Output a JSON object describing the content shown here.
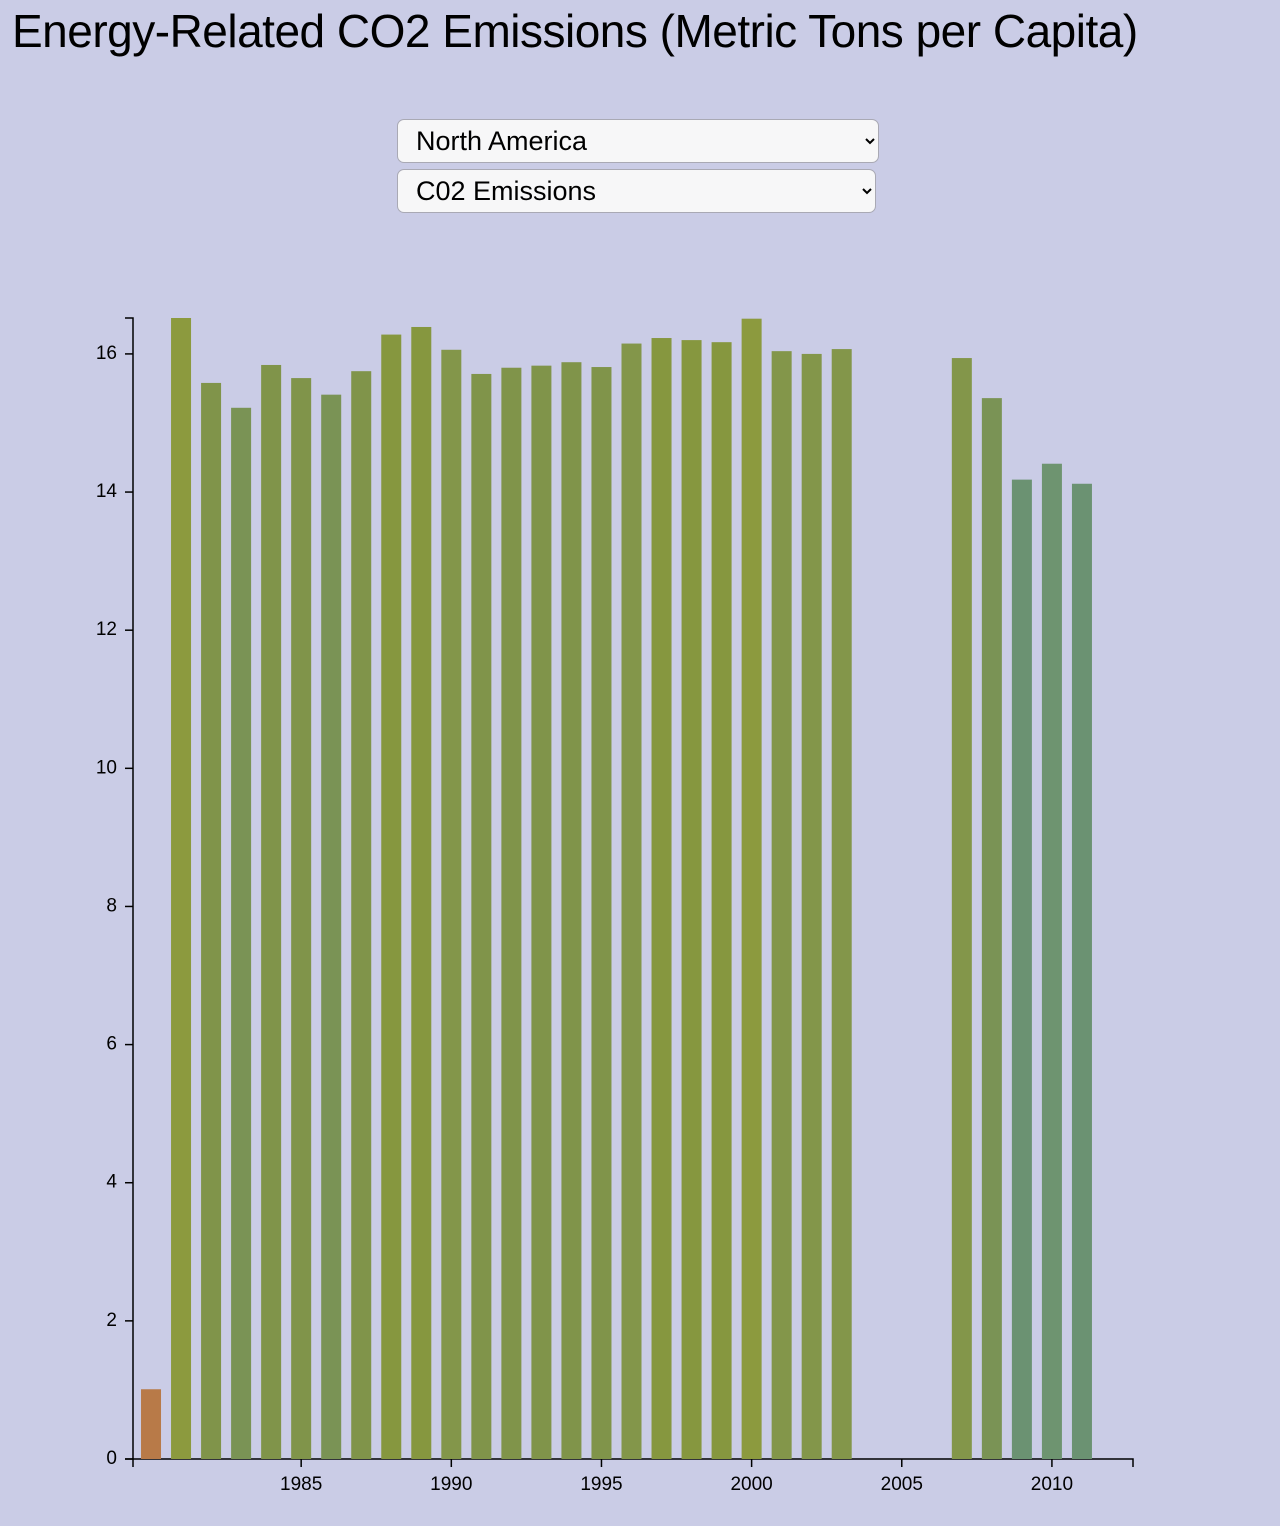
{
  "page": {
    "title": "Energy-Related CO2 Emissions (Metric Tons per Capita)",
    "controls": {
      "region": "North America",
      "metric": "C02 Emissions"
    }
  },
  "chart_data": {
    "type": "bar",
    "x": [
      1980,
      1981,
      1982,
      1983,
      1984,
      1985,
      1986,
      1987,
      1988,
      1989,
      1990,
      1991,
      1992,
      1993,
      1994,
      1995,
      1996,
      1997,
      1998,
      1999,
      2000,
      2001,
      2002,
      2003,
      2004,
      2005,
      2006,
      2007,
      2008,
      2009,
      2010,
      2011
    ],
    "values": [
      1.01,
      16.52,
      15.58,
      15.22,
      15.84,
      15.65,
      15.41,
      15.75,
      16.28,
      16.39,
      16.06,
      15.71,
      15.8,
      15.83,
      15.88,
      15.81,
      16.15,
      16.23,
      16.2,
      16.17,
      16.51,
      16.04,
      16.0,
      16.07,
      null,
      null,
      null,
      15.94,
      15.36,
      14.18,
      14.41,
      14.12
    ],
    "colors": [
      "#b87a48",
      "#8c9a3e",
      "#80944a",
      "#7a9355",
      "#80944a",
      "#80944a",
      "#7a9355",
      "#80944a",
      "#86973f",
      "#86973f",
      "#83964a",
      "#80944a",
      "#80944a",
      "#80944a",
      "#80944a",
      "#80944a",
      "#83964a",
      "#86973f",
      "#86973f",
      "#86973f",
      "#8c9a3e",
      "#83964a",
      "#83964a",
      "#83964a",
      null,
      null,
      null,
      "#83964a",
      "#7a9355",
      "#6b9272",
      "#6e9470",
      "#6b9272"
    ],
    "xlim": [
      1979.4,
      2012.7
    ],
    "xticks": [
      1985,
      1990,
      1995,
      2000,
      2005,
      2010
    ],
    "ylim": [
      0,
      16.52
    ],
    "yticks": [
      0,
      2,
      4,
      6,
      8,
      10,
      12,
      14,
      16
    ]
  }
}
